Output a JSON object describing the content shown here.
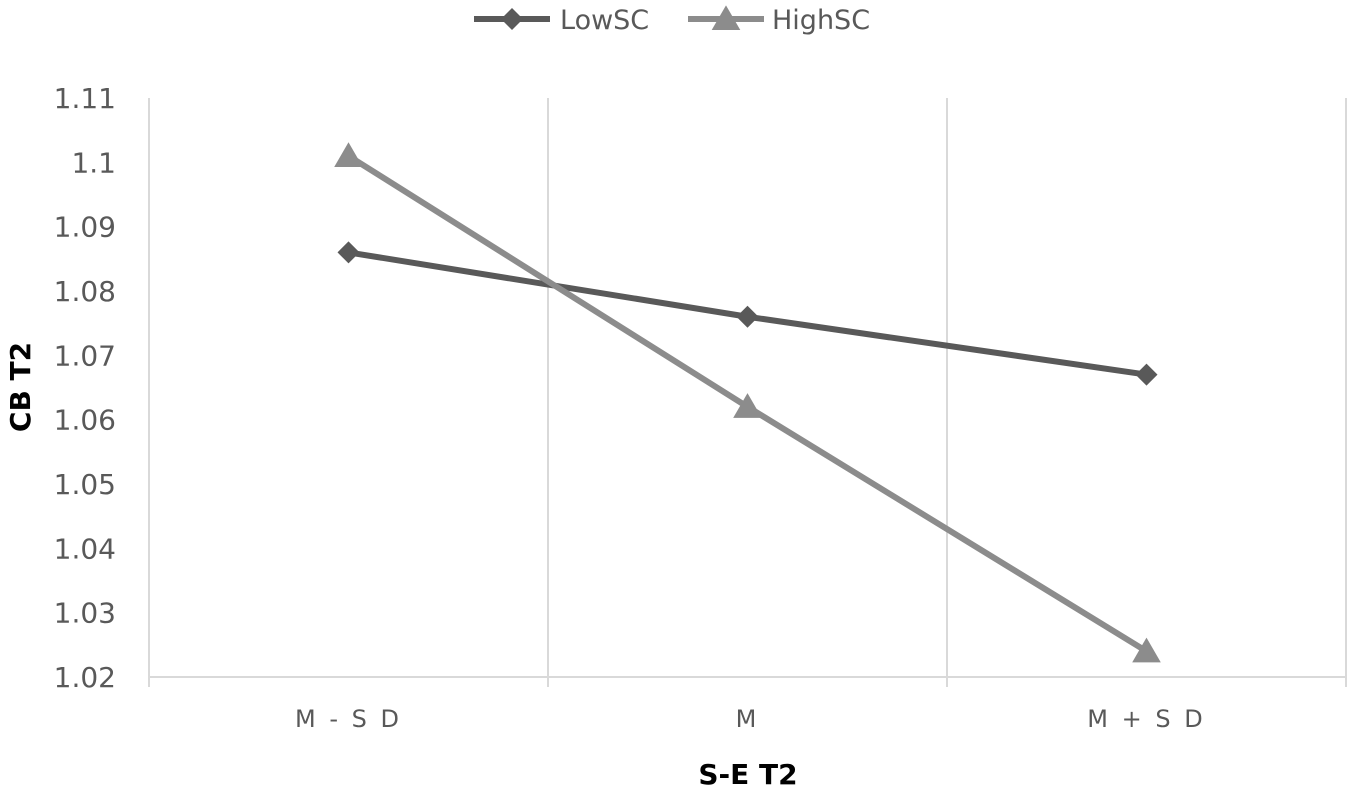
{
  "chart_data": {
    "type": "line",
    "categories": [
      "M - S D",
      "M",
      "M + S D"
    ],
    "series": [
      {
        "name": "LowSC",
        "values": [
          1.086,
          1.076,
          1.067
        ],
        "color": "#595959",
        "marker": "diamond"
      },
      {
        "name": "HighSC",
        "values": [
          1.101,
          1.062,
          1.024
        ],
        "color": "#8c8c8c",
        "marker": "triangle"
      }
    ],
    "xlabel": "S-E T2",
    "ylabel": "CB T2",
    "ylim": [
      1.02,
      1.11
    ],
    "yticks": [
      "1.02",
      "1.03",
      "1.04",
      "1.05",
      "1.06",
      "1.07",
      "1.08",
      "1.09",
      "1.1",
      "1.11"
    ],
    "grid": "vertical",
    "legend": "top-center",
    "gridline_color": "#d9d9d9"
  }
}
